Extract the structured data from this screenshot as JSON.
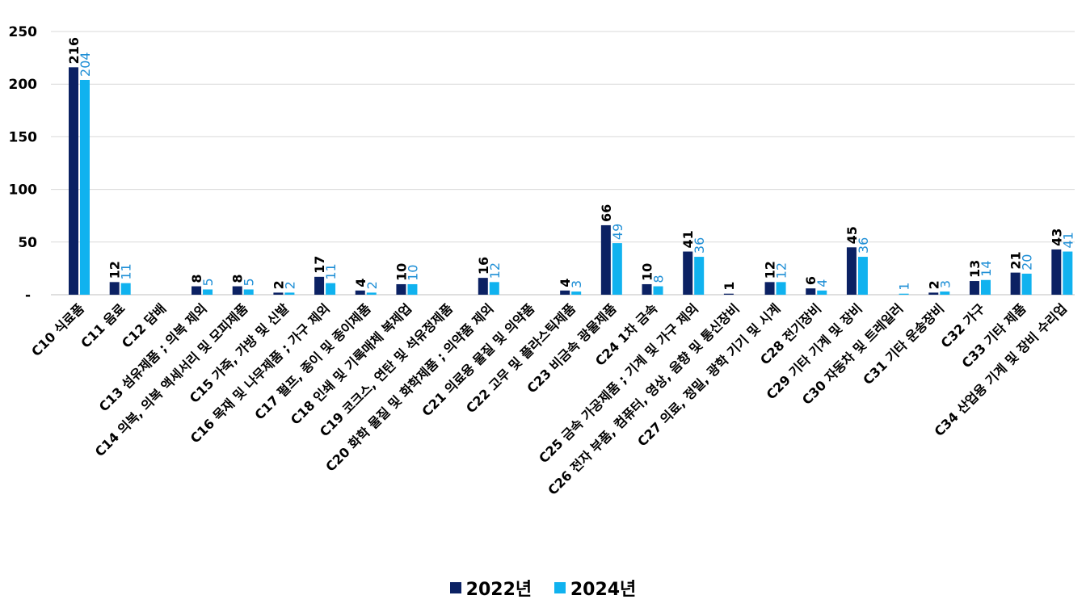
{
  "chart_data": {
    "type": "bar",
    "title": "",
    "xlabel": "",
    "ylabel": "",
    "ylim": [
      0,
      250
    ],
    "yticks": [
      {
        "value": 0,
        "label": "-"
      },
      {
        "value": 50,
        "label": "50"
      },
      {
        "value": 100,
        "label": "100"
      },
      {
        "value": 150,
        "label": "150"
      },
      {
        "value": 200,
        "label": "200"
      },
      {
        "value": 250,
        "label": "250"
      }
    ],
    "grid": true,
    "legend_position": "bottom",
    "categories": [
      "C10 식료품",
      "C11 음료",
      "C12 담배",
      "C13 섬유제품 ; 의복 제외",
      "C14 의복, 의복 액세서리 및 모피제품",
      "C15 가죽, 가방 및 신발",
      "C16 목재 및 나무제품 ; 가구 제외",
      "C17 펄프, 종이 및 종이제품",
      "C18 인쇄 및 기록매체 복제업",
      "C19 코크스, 연탄 및 석유정제품",
      "C20 화학 물질 및 화학제품 ; 의약품 제외",
      "C21 의료용 물질 및 의약품",
      "C22 고무 및 플라스틱제품",
      "C23 비금속 광물제품",
      "C24 1차 금속",
      "C25 금속 가공제품 ; 기계 및 가구 제외",
      "C26 전자 부품, 컴퓨터, 영상, 음향 및 통신장비",
      "C27 의료, 정밀, 광학 기기 및 시계",
      "C28 전기장비",
      "C29 기타 기계 및 장비",
      "C30 자동차 및 트레일러",
      "C31 기타 운송장비",
      "C32 가구",
      "C33 기타 제품",
      "C34 산업용 기계 및 장비 수리업"
    ],
    "series": [
      {
        "name": "2022년",
        "color": "#0b2163",
        "label_color": "#000000",
        "values": [
          216,
          12,
          null,
          8,
          8,
          2,
          17,
          4,
          10,
          null,
          16,
          null,
          4,
          66,
          10,
          41,
          1,
          12,
          6,
          45,
          null,
          2,
          13,
          21,
          43
        ]
      },
      {
        "name": "2024년",
        "color": "#10b2ef",
        "label_color": "#1f8fd6",
        "values": [
          204,
          11,
          null,
          5,
          5,
          2,
          11,
          2,
          10,
          null,
          12,
          null,
          3,
          49,
          8,
          36,
          null,
          12,
          4,
          36,
          1,
          3,
          14,
          20,
          41
        ]
      }
    ]
  }
}
